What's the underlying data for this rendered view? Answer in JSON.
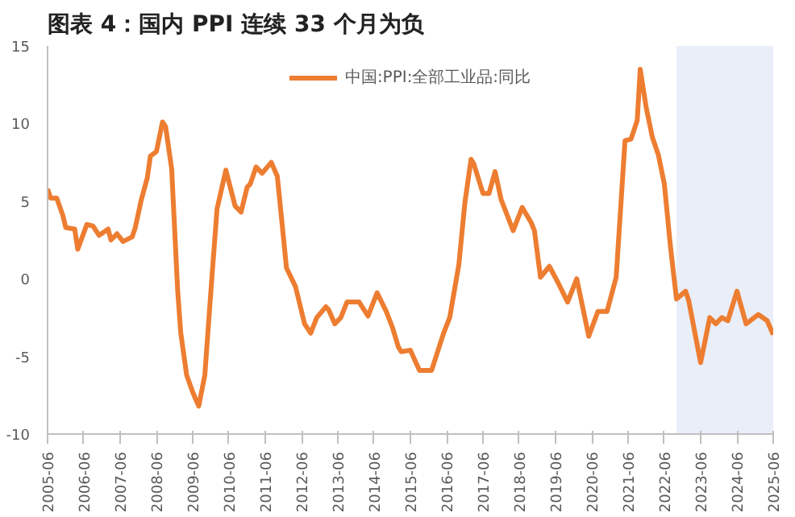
{
  "chart_data": {
    "type": "line",
    "title": "图表 4：国内 PPI 连续 33 个月为负",
    "x": [
      "2005-06",
      "2005-07",
      "2005-09",
      "2005-11",
      "2005-12",
      "2006-03",
      "2006-04",
      "2006-07",
      "2006-09",
      "2006-11",
      "2007-02",
      "2007-03",
      "2007-05",
      "2007-07",
      "2007-10",
      "2007-11",
      "2008-01",
      "2008-03",
      "2008-04",
      "2008-06",
      "2008-08",
      "2008-09",
      "2008-11",
      "2009-01",
      "2009-02",
      "2009-04",
      "2009-06",
      "2009-08",
      "2009-10",
      "2009-12",
      "2010-02",
      "2010-05",
      "2010-08",
      "2010-10",
      "2010-12",
      "2011-01",
      "2011-03",
      "2011-05",
      "2011-08",
      "2011-10",
      "2011-12",
      "2012-01",
      "2012-04",
      "2012-07",
      "2012-09",
      "2012-11",
      "2013-02",
      "2013-03",
      "2013-05",
      "2013-07",
      "2013-09",
      "2014-01",
      "2014-04",
      "2014-07",
      "2014-10",
      "2014-12",
      "2015-02",
      "2015-03",
      "2015-06",
      "2015-09",
      "2016-01",
      "2016-05",
      "2016-07",
      "2016-10",
      "2016-12",
      "2017-02",
      "2017-03",
      "2017-06",
      "2017-08",
      "2017-10",
      "2017-12",
      "2018-04",
      "2018-07",
      "2018-10",
      "2018-11",
      "2019-01",
      "2019-04",
      "2019-07",
      "2019-10",
      "2020-01",
      "2020-05",
      "2020-08",
      "2020-11",
      "2021-02",
      "2021-05",
      "2021-07",
      "2021-09",
      "2021-10",
      "2021-12",
      "2022-02",
      "2022-04",
      "2022-06",
      "2022-08",
      "2022-10",
      "2023-01",
      "2023-02",
      "2023-06",
      "2023-09",
      "2023-11",
      "2024-01",
      "2024-03",
      "2024-06",
      "2024-09",
      "2025-01",
      "2025-04",
      "2025-06"
    ],
    "series": [
      {
        "name": "中国:PPI:全部工业品:同比",
        "color": "#ed7d31",
        "values": [
          5.8,
          5.2,
          5.2,
          4.1,
          3.3,
          3.2,
          1.9,
          3.5,
          3.4,
          2.8,
          3.2,
          2.5,
          2.9,
          2.4,
          2.7,
          3.3,
          5.1,
          6.5,
          7.9,
          8.2,
          10.1,
          9.8,
          7.1,
          -0.8,
          -3.5,
          -6.2,
          -7.3,
          -8.2,
          -6.2,
          -0.8,
          4.5,
          7.0,
          4.7,
          4.3,
          5.9,
          6.1,
          7.2,
          6.8,
          7.5,
          6.6,
          2.7,
          0.7,
          -0.5,
          -2.9,
          -3.5,
          -2.5,
          -1.8,
          -2.0,
          -2.9,
          -2.5,
          -1.5,
          -1.5,
          -2.4,
          -0.9,
          -2.1,
          -3.1,
          -4.4,
          -4.7,
          -4.6,
          -5.9,
          -5.9,
          -3.5,
          -2.5,
          0.9,
          4.9,
          7.7,
          7.4,
          5.5,
          5.5,
          6.9,
          5.1,
          3.1,
          4.6,
          3.6,
          3.1,
          0.1,
          0.8,
          -0.3,
          -1.5,
          0.0,
          -3.7,
          -2.1,
          -2.1,
          0.1,
          8.9,
          9.0,
          10.2,
          13.5,
          11.0,
          9.1,
          8.0,
          6.1,
          2.1,
          -1.3,
          -0.8,
          -1.4,
          -5.4,
          -2.5,
          -2.9,
          -2.5,
          -2.7,
          -0.8,
          -2.9,
          -2.3,
          -2.7,
          -3.6
        ]
      }
    ],
    "xlim": [
      "2005-06",
      "2025-06"
    ],
    "xticks": [
      "2005-06",
      "2006-06",
      "2007-06",
      "2008-06",
      "2009-06",
      "2010-06",
      "2011-06",
      "2012-06",
      "2013-06",
      "2014-06",
      "2015-06",
      "2016-06",
      "2017-06",
      "2018-06",
      "2019-06",
      "2020-06",
      "2021-06",
      "2022-06",
      "2023-06",
      "2024-06",
      "2025-06"
    ],
    "ylim": [
      -10,
      15
    ],
    "yticks": [
      -10,
      -5,
      0,
      5,
      10,
      15
    ],
    "bands": [
      {
        "axis": "x",
        "from": "2022-10",
        "to": "2025-06",
        "color": "#e9eef8"
      }
    ],
    "legend": "top",
    "grid": false,
    "line_style": "solid",
    "marker": "none"
  }
}
